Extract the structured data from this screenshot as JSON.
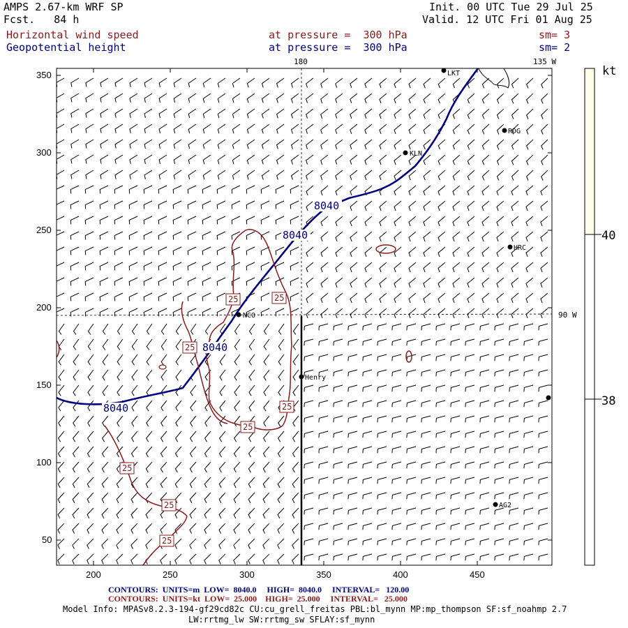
{
  "header": {
    "title": "AMPS 2.67-km WRF SP",
    "forecast": "Fcst.   84 h",
    "init": "Init. 00 UTC Tue 29 Jul 25",
    "valid": "Valid. 12 UTC Fri 01 Aug 25",
    "field1_name": "Horizontal wind speed",
    "field1_level": "at pressure =  300 hPa",
    "field1_sm": "sm= 3",
    "field2_name": "Geopotential height",
    "field2_level": "at pressure =  300 hPa",
    "field2_sm": "sm= 2"
  },
  "map": {
    "meridian_labels": {
      "top": "180",
      "top_right": "135 W",
      "right": "90 W"
    },
    "x_ticks": [
      "200",
      "250",
      "300",
      "350",
      "400",
      "450"
    ],
    "y_ticks": [
      "350",
      "300",
      "250",
      "200",
      "150",
      "100",
      "50"
    ],
    "stations": [
      {
        "name": "LKT"
      },
      {
        "name": "RDG"
      },
      {
        "name": "KLN"
      },
      {
        "name": "HRC"
      },
      {
        "name": "NCO"
      },
      {
        "name": "Henry"
      },
      {
        "name": "AG2"
      }
    ],
    "height_label": "8040",
    "wind_label": "25"
  },
  "colorbar": {
    "unit": "kt",
    "labels": [
      "40",
      "38"
    ],
    "fill_color": "#fffde8"
  },
  "footer": {
    "contour1": "CONTOURS:  UNITS=m  LOW=  8040.0     HIGH=  8040.0     INTERVAL=   120.00",
    "contour2": "CONTOURS:  UNITS=kt  LOW=  25.000    HIGH=  25.000     INTERVAL=   25.000",
    "model1": "Model Info: MPASv8.2.3-194-gf29cd82c CU:cu_grell_freitas PBL:bl_mynn MP:mp_thompson SF:sf_noahmp 2.7",
    "model2": "LW:rrtmg_lw SW:rrtmg_sw SFLAY:sf_mynn"
  },
  "colors": {
    "height_contour": "#000080",
    "wind_contour": "#8b1a1a"
  }
}
